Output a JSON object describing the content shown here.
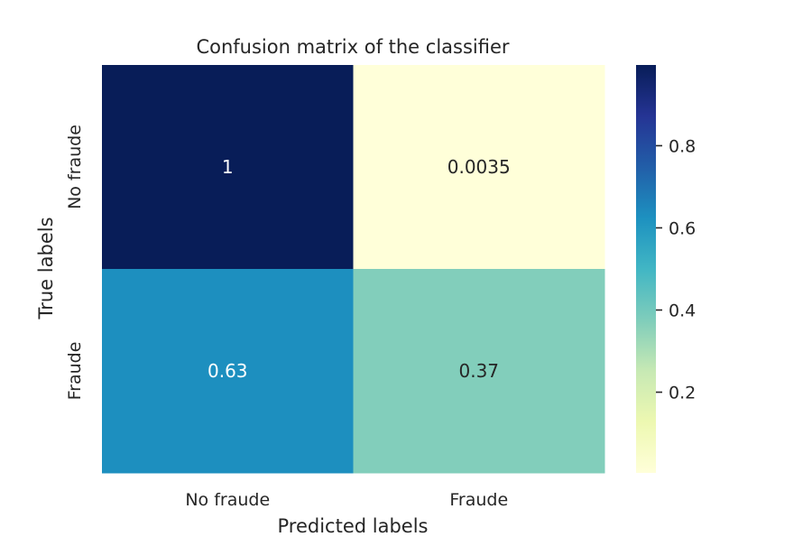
{
  "chart_data": {
    "type": "heatmap",
    "title": "Confusion matrix of the classifier",
    "xlabel": "Predicted labels",
    "ylabel": "True labels",
    "x_categories": [
      "No fraude",
      "Fraude"
    ],
    "y_categories": [
      "No fraude",
      "Fraude"
    ],
    "values": [
      [
        0.9965,
        0.0035
      ],
      [
        0.63,
        0.37
      ]
    ],
    "cell_labels": [
      [
        "1",
        "0.0035"
      ],
      [
        "0.63",
        "0.37"
      ]
    ],
    "colormap": "YlGnBu",
    "colorbar": {
      "range": [
        0.0035,
        0.9965
      ],
      "ticks": [
        0.2,
        0.4,
        0.6,
        0.8
      ],
      "tick_labels": [
        "0.2",
        "0.4",
        "0.6",
        "0.8"
      ]
    },
    "colors": {
      "stops": [
        "#ffffd9",
        "#edf8b1",
        "#c7e9b4",
        "#7fcdbb",
        "#41b6c4",
        "#1d91c0",
        "#225ea8",
        "#253494",
        "#081d58"
      ],
      "text_dark": "#262626",
      "text_light": "#ffffff"
    }
  }
}
